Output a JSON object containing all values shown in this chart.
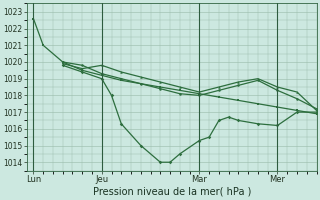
{
  "bg_color": "#cce8e0",
  "grid_color": "#99bbaa",
  "line_color": "#2d6e3e",
  "ylim": [
    1013.5,
    1023.5
  ],
  "yticks": [
    1014,
    1015,
    1016,
    1017,
    1018,
    1019,
    1020,
    1021,
    1022,
    1023
  ],
  "xlabel": "Pression niveau de la mer( hPa )",
  "xlabel_fontsize": 7,
  "xtick_labels": [
    "Lun",
    "Jeu",
    "Mar",
    "Mer"
  ],
  "xtick_positions": [
    0,
    21,
    51,
    75
  ],
  "vline_positions": [
    0,
    21,
    51,
    75
  ],
  "xlim": [
    -2,
    87
  ],
  "series1": {
    "x": [
      0,
      3,
      9,
      15,
      21,
      27,
      33,
      39,
      45,
      51,
      57,
      63,
      69,
      75,
      81,
      87
    ],
    "y": [
      1022.6,
      1021.0,
      1020.0,
      1019.5,
      1019.2,
      1018.9,
      1018.7,
      1018.5,
      1018.3,
      1018.1,
      1017.9,
      1017.7,
      1017.5,
      1017.3,
      1017.1,
      1016.9
    ]
  },
  "series2": {
    "x": [
      9,
      15,
      21,
      24,
      27,
      33,
      39,
      42,
      45,
      51,
      54,
      57,
      60,
      63,
      69,
      75,
      81,
      87
    ],
    "y": [
      1019.8,
      1019.4,
      1019.0,
      1018.0,
      1016.3,
      1015.0,
      1014.0,
      1014.0,
      1014.5,
      1015.3,
      1015.5,
      1016.5,
      1016.7,
      1016.5,
      1016.3,
      1016.2,
      1017.0,
      1017.0
    ]
  },
  "series3": {
    "x": [
      9,
      15,
      21,
      27,
      33,
      39,
      45,
      51,
      57,
      63,
      69,
      75,
      81,
      87
    ],
    "y": [
      1019.9,
      1019.6,
      1019.8,
      1019.4,
      1019.1,
      1018.8,
      1018.5,
      1018.2,
      1018.5,
      1018.8,
      1019.0,
      1018.5,
      1018.2,
      1017.1
    ]
  },
  "series4": {
    "x": [
      9,
      15,
      21,
      27,
      33,
      39,
      45,
      51,
      57,
      63,
      69,
      75,
      81,
      87
    ],
    "y": [
      1020.0,
      1019.8,
      1019.3,
      1019.0,
      1018.7,
      1018.4,
      1018.1,
      1018.0,
      1018.3,
      1018.6,
      1018.9,
      1018.3,
      1017.8,
      1017.2
    ]
  }
}
